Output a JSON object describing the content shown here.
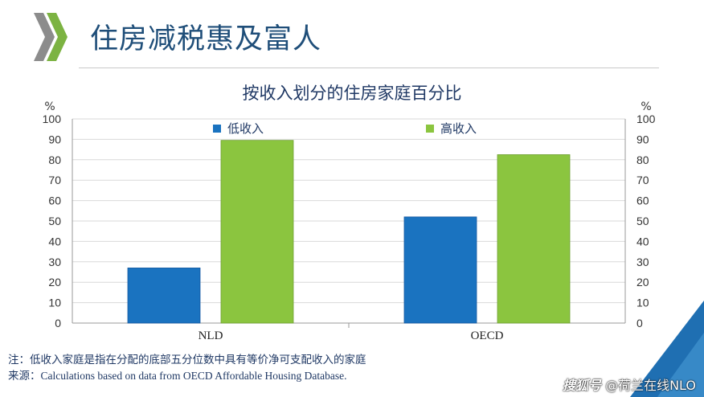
{
  "slide": {
    "title": "住房减税惠及富人"
  },
  "notes": {
    "note": "注：低收入家庭是指在分配的底部五分位数中具有等价净可支配收入的家庭",
    "source_label": "来源",
    "source_text": "：Calculations based on data from OECD Affordable Housing Database."
  },
  "watermark": {
    "brand": "搜狐号",
    "handle": "@荷兰在线NLO"
  },
  "colors": {
    "low_income": "#1a73c0",
    "high_income": "#8bc53f",
    "title": "#1f4e79",
    "logo_green": "#7cb342",
    "logo_gray": "#8c8c8c",
    "corner_blue": "#1f6fb2"
  },
  "chart_data": {
    "type": "bar",
    "title": "按收入划分的住房家庭百分比",
    "categories": [
      "NLD",
      "OECD"
    ],
    "series": [
      {
        "name": "低收入",
        "values": [
          27,
          52
        ]
      },
      {
        "name": "高收入",
        "values": [
          89.5,
          82.5
        ]
      }
    ],
    "ylabel": "%",
    "ylabel_right": "%",
    "ylim": [
      0,
      100
    ],
    "yticks": [
      0,
      10,
      20,
      30,
      40,
      50,
      60,
      70,
      80,
      90,
      100
    ],
    "grid": true,
    "legend": "top"
  }
}
